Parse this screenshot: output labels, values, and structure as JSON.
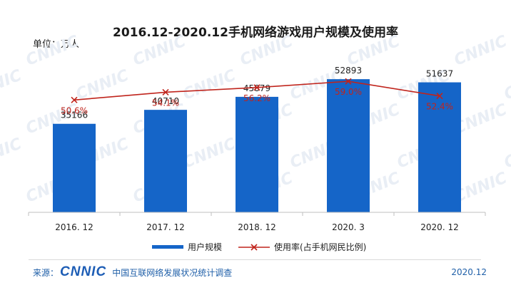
{
  "page": {
    "unit": "单位：万人",
    "footer": {
      "source_prefix": "来源：",
      "logo": "CNNIC",
      "org": "中国互联网络发展状况统计调查",
      "date": "2020.12"
    },
    "watermark": "CNNIC"
  },
  "chart_data": {
    "type": "bar",
    "title": "2016.12-2020.12手机网络游戏用户规模及使用率",
    "categories": [
      "2016. 12",
      "2017. 12",
      "2018. 12",
      "2020. 3",
      "2020. 12"
    ],
    "series": [
      {
        "name": "用户规模",
        "type": "bar",
        "values": [
          35166,
          40710,
          45879,
          52893,
          51637
        ],
        "color": "#1565c8"
      },
      {
        "name": "使用率(占手机网民比例)",
        "type": "line",
        "values": [
          50.6,
          54.1,
          56.2,
          59.0,
          52.4
        ],
        "labels": [
          "50.6%",
          "54.1%",
          "56.2%",
          "59.0%",
          "52.4%"
        ],
        "color": "#c0241c"
      }
    ],
    "bar_ylim": [
      0,
      60000
    ],
    "legend_position": "bottom",
    "grid": false
  }
}
